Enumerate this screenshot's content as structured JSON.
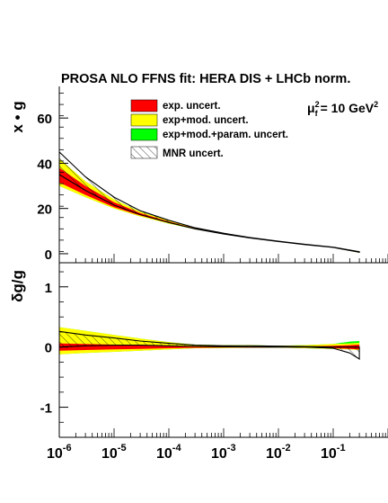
{
  "chart_data": [
    {
      "type": "area",
      "title": "PROSA NLO FFNS fit: HERA DIS + LHCb norm.",
      "annotation": "μ²f = 10 GeV²",
      "annotation_parts": {
        "mu": "μ",
        "sup": "2",
        "sub": "f",
        "rest": "= 10 GeV",
        "rest_sup": "2"
      },
      "ylabel": "x • g",
      "xscale": "log",
      "xlim": [
        1e-06,
        1
      ],
      "ylim": [
        -4,
        74
      ],
      "yticks": [
        0,
        20,
        40,
        60
      ],
      "ytick_labels": [
        "0",
        "20",
        "40",
        "60"
      ],
      "legend_placement": "top-center",
      "legend": [
        {
          "name": "exp. uncert.",
          "color": "#ff0000",
          "pattern": "solid"
        },
        {
          "name": "exp+mod. uncert.",
          "color": "#ffff00",
          "pattern": "solid"
        },
        {
          "name": "exp+mod.+param. uncert.",
          "color": "#00ff00",
          "pattern": "solid"
        },
        {
          "name": "MNR uncert.",
          "color": "#ffffff",
          "pattern": "hatch"
        }
      ],
      "x": [
        1e-06,
        3e-06,
        1e-05,
        3e-05,
        0.0001,
        0.0003,
        0.001,
        0.003,
        0.01,
        0.03,
        0.1,
        0.3
      ],
      "series": [
        {
          "name": "exp+mod.+param. uncert.",
          "color": "#00ff00",
          "lower": [
            30,
            25,
            20,
            16.5,
            13.3,
            10.8,
            8.6,
            6.9,
            5.3,
            4.0,
            2.7,
            0.4
          ],
          "upper": [
            42,
            32,
            24,
            18.6,
            14.6,
            11.4,
            9.0,
            7.15,
            5.5,
            4.15,
            2.85,
            0.9
          ]
        },
        {
          "name": "exp+mod. uncert.",
          "color": "#ffff00",
          "lower": [
            30,
            25,
            20,
            16.5,
            13.3,
            10.8,
            8.6,
            6.9,
            5.3,
            4.0,
            2.7,
            0.4
          ],
          "upper": [
            42,
            32,
            24,
            18.6,
            14.6,
            11.4,
            9.0,
            7.15,
            5.5,
            4.15,
            2.85,
            0.9
          ]
        },
        {
          "name": "exp. uncert.",
          "color": "#ff0000",
          "lower": [
            31.5,
            26,
            20.5,
            16.9,
            13.6,
            10.9,
            8.65,
            6.95,
            5.35,
            4.02,
            2.72,
            0.5
          ],
          "upper": [
            38,
            30,
            22.8,
            18.0,
            14.2,
            11.2,
            8.85,
            7.1,
            5.45,
            4.12,
            2.8,
            0.8
          ]
        },
        {
          "name": "MNR uncert.",
          "pattern": "hatch",
          "lower": [
            35,
            28,
            21.5,
            17.3,
            13.8,
            11.0,
            8.7,
            6.98,
            5.38,
            4.05,
            2.75,
            0.6
          ],
          "upper": [
            45,
            34,
            25,
            19.0,
            14.8,
            11.5,
            9.05,
            7.2,
            5.52,
            4.18,
            2.88,
            0.9
          ]
        }
      ]
    },
    {
      "type": "area",
      "ylabel": "δg/g",
      "xscale": "log",
      "xlim": [
        1e-06,
        1
      ],
      "ylim": [
        -1.5,
        1.4
      ],
      "yticks": [
        -1,
        0,
        1
      ],
      "ytick_labels": [
        "-1",
        "0",
        "1"
      ],
      "xtick_labels": [
        {
          "base": "10",
          "exp": "-6"
        },
        {
          "base": "10",
          "exp": "-5"
        },
        {
          "base": "10",
          "exp": "-4"
        },
        {
          "base": "10",
          "exp": "-3"
        },
        {
          "base": "10",
          "exp": "-2"
        },
        {
          "base": "10",
          "exp": "-1"
        }
      ],
      "x": [
        1e-06,
        3e-06,
        1e-05,
        3e-05,
        0.0001,
        0.0003,
        0.001,
        0.003,
        0.01,
        0.03,
        0.1,
        0.2,
        0.3
      ],
      "series": [
        {
          "name": "exp+mod.+param. uncert.",
          "color": "#00ff00",
          "lower": [
            -0.12,
            -0.1,
            -0.08,
            -0.06,
            -0.04,
            -0.02,
            -0.015,
            -0.012,
            -0.01,
            -0.02,
            -0.03,
            -0.04,
            -0.05
          ],
          "upper": [
            0.33,
            0.27,
            0.2,
            0.14,
            0.08,
            0.04,
            0.03,
            0.03,
            0.02,
            0.03,
            0.05,
            0.09,
            0.1
          ]
        },
        {
          "name": "exp+mod. uncert.",
          "color": "#ffff00",
          "lower": [
            -0.12,
            -0.1,
            -0.08,
            -0.06,
            -0.04,
            -0.02,
            -0.015,
            -0.012,
            -0.01,
            -0.02,
            -0.03,
            -0.04,
            -0.05
          ],
          "upper": [
            0.33,
            0.27,
            0.2,
            0.14,
            0.08,
            0.04,
            0.03,
            0.03,
            0.02,
            0.03,
            0.05,
            0.06,
            0.07
          ]
        },
        {
          "name": "exp. uncert.",
          "color": "#ff0000",
          "lower": [
            -0.06,
            -0.05,
            -0.04,
            -0.03,
            -0.02,
            -0.012,
            -0.01,
            -0.008,
            -0.006,
            -0.01,
            -0.02,
            -0.03,
            -0.04
          ],
          "upper": [
            0.06,
            0.05,
            0.04,
            0.03,
            0.02,
            0.012,
            0.01,
            0.008,
            0.006,
            0.01,
            0.02,
            0.03,
            0.04
          ]
        },
        {
          "name": "MNR uncert.",
          "pattern": "hatch",
          "lower": [
            0.0,
            0.02,
            0.03,
            0.03,
            0.02,
            0.01,
            0.005,
            0.0,
            0.0,
            0.0,
            -0.02,
            -0.1,
            -0.2
          ],
          "upper": [
            0.26,
            0.2,
            0.15,
            0.1,
            0.06,
            0.03,
            0.02,
            0.02,
            0.015,
            0.01,
            0.0,
            0.0,
            0.0
          ]
        }
      ]
    }
  ]
}
